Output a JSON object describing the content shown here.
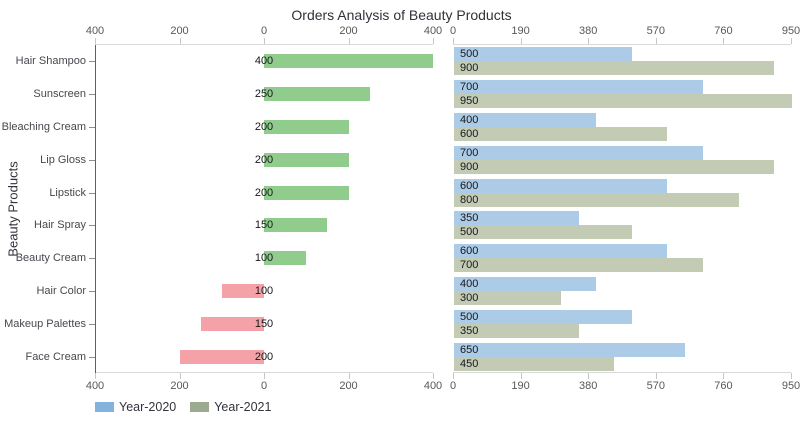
{
  "title": "Orders Analysis of Beauty Products",
  "y_axis_title": "Beauty Products",
  "legend": {
    "items": [
      {
        "label": "Year-2020",
        "color": "#82b2dd"
      },
      {
        "label": "Year-2021",
        "color": "#9cab90"
      }
    ]
  },
  "categories": [
    "Hair Shampoo",
    "Sunscreen",
    "Bleaching Cream",
    "Lip Gloss",
    "Lipstick",
    "Hair Spray",
    "Beauty Cream",
    "Hair Color",
    "Makeup Palettes",
    "Face Cream"
  ],
  "chart_data": [
    {
      "type": "bar",
      "orientation": "horizontal-diverging",
      "panel": "left",
      "ylabel": "Beauty Products",
      "categories": [
        "Hair Shampoo",
        "Sunscreen",
        "Bleaching Cream",
        "Lip Gloss",
        "Lipstick",
        "Hair Spray",
        "Beauty Cream",
        "Hair Color",
        "Makeup Palettes",
        "Face Cream"
      ],
      "values": [
        400,
        250,
        200,
        200,
        200,
        150,
        100,
        -100,
        -150,
        -200
      ],
      "bar_labels": [
        "400",
        "250",
        "200",
        "200",
        "200",
        "150",
        "100",
        "100",
        "150",
        "200"
      ],
      "positive_color": "#90cd8c",
      "negative_color": "#f4a2a7",
      "xlim": [
        -400,
        400
      ],
      "xticks": [
        {
          "value": -400,
          "label": "400"
        },
        {
          "value": -200,
          "label": "200"
        },
        {
          "value": 0,
          "label": "0"
        },
        {
          "value": 200,
          "label": "200"
        },
        {
          "value": 400,
          "label": "400"
        }
      ],
      "grid": false
    },
    {
      "type": "bar",
      "orientation": "horizontal-grouped",
      "panel": "right",
      "categories": [
        "Hair Shampoo",
        "Sunscreen",
        "Bleaching Cream",
        "Lip Gloss",
        "Lipstick",
        "Hair Spray",
        "Beauty Cream",
        "Hair Color",
        "Makeup Palettes",
        "Face Cream"
      ],
      "series": [
        {
          "name": "Year-2020",
          "color": "#accbe7",
          "values": [
            500,
            700,
            400,
            700,
            600,
            350,
            600,
            400,
            500,
            650
          ]
        },
        {
          "name": "Year-2021",
          "color": "#c3cbb5",
          "values": [
            900,
            950,
            600,
            900,
            800,
            500,
            700,
            300,
            350,
            450
          ]
        }
      ],
      "xlim": [
        0,
        950
      ],
      "xticks": [
        {
          "value": 0,
          "label": "0"
        },
        {
          "value": 190,
          "label": "190"
        },
        {
          "value": 380,
          "label": "380"
        },
        {
          "value": 570,
          "label": "570"
        },
        {
          "value": 760,
          "label": "760"
        },
        {
          "value": 950,
          "label": "950"
        }
      ],
      "grid": false,
      "legend_position": "bottom-left"
    }
  ]
}
